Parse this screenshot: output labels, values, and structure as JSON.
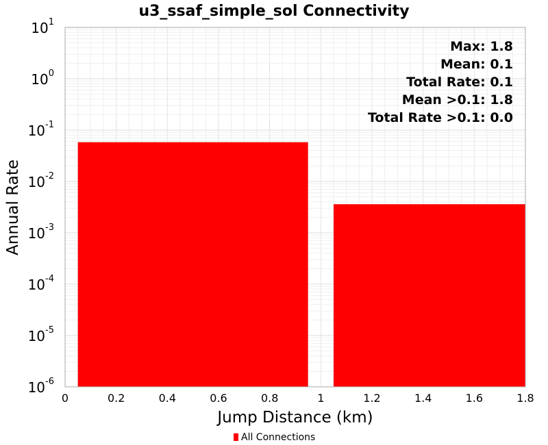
{
  "chart_data": {
    "type": "bar",
    "title": "u3_ssaf_simple_sol Connectivity",
    "xlabel": "Jump Distance (km)",
    "ylabel": "Annual Rate",
    "xlim": [
      0,
      1.8
    ],
    "ylim": [
      1e-06,
      10
    ],
    "y_scale": "log",
    "x_ticks": [
      "0",
      "0.2",
      "0.4",
      "0.6",
      "0.8",
      "1",
      "1.2",
      "1.4",
      "1.6",
      "1.8"
    ],
    "y_ticks": [
      {
        "base": "10",
        "exp": "1",
        "value": 10
      },
      {
        "base": "10",
        "exp": "0",
        "value": 1
      },
      {
        "base": "10",
        "exp": "-1",
        "value": 0.1
      },
      {
        "base": "10",
        "exp": "-2",
        "value": 0.01
      },
      {
        "base": "10",
        "exp": "-3",
        "value": 0.001
      },
      {
        "base": "10",
        "exp": "-4",
        "value": 0.0001
      },
      {
        "base": "10",
        "exp": "-5",
        "value": 1e-05
      },
      {
        "base": "10",
        "exp": "-6",
        "value": 1e-06
      }
    ],
    "grid": true,
    "bars": [
      {
        "x_start": 0.05,
        "x_end": 0.95,
        "value": 0.058
      },
      {
        "x_start": 1.05,
        "x_end": 1.8,
        "value": 0.0036
      }
    ],
    "series": [
      {
        "name": "All Connections",
        "color": "#ff0000"
      }
    ],
    "annotations": [
      "Max: 1.8",
      "Mean: 0.1",
      "Total Rate: 0.1",
      "Mean >0.1: 1.8",
      "Total Rate >0.1: 0.0"
    ],
    "legend_position": "bottom-center"
  }
}
